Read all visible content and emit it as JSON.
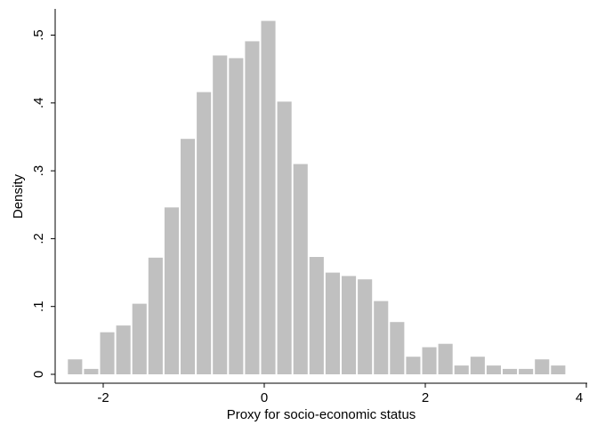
{
  "chart_data": {
    "type": "bar",
    "subtype": "histogram",
    "xlabel": "Proxy for socio-economic status",
    "ylabel": "Density",
    "xlim": [
      -2.5,
      4.0
    ],
    "ylim": [
      0,
      0.55
    ],
    "x_ticks": [
      {
        "value": -2,
        "label": "-2"
      },
      {
        "value": 0,
        "label": "0"
      },
      {
        "value": 2,
        "label": "2"
      },
      {
        "value": 4,
        "label": "4"
      }
    ],
    "y_ticks": [
      {
        "value": 0,
        "label": "0"
      },
      {
        "value": 0.1,
        "label": ".1"
      },
      {
        "value": 0.2,
        "label": ".2"
      },
      {
        "value": 0.3,
        "label": ".3"
      },
      {
        "value": 0.4,
        "label": ".4"
      },
      {
        "value": 0.5,
        "label": ".5"
      }
    ],
    "grid": false,
    "bar_color": "#c0c0c0",
    "bins": [
      {
        "x0": -2.45,
        "x1": -2.25,
        "density": 0.022
      },
      {
        "x0": -2.25,
        "x1": -2.05,
        "density": 0.008
      },
      {
        "x0": -2.05,
        "x1": -1.85,
        "density": 0.062
      },
      {
        "x0": -1.85,
        "x1": -1.65,
        "density": 0.072
      },
      {
        "x0": -1.65,
        "x1": -1.45,
        "density": 0.104
      },
      {
        "x0": -1.45,
        "x1": -1.25,
        "density": 0.172
      },
      {
        "x0": -1.25,
        "x1": -1.05,
        "density": 0.246
      },
      {
        "x0": -1.05,
        "x1": -0.85,
        "density": 0.347
      },
      {
        "x0": -0.85,
        "x1": -0.65,
        "density": 0.416
      },
      {
        "x0": -0.65,
        "x1": -0.45,
        "density": 0.47
      },
      {
        "x0": -0.45,
        "x1": -0.25,
        "density": 0.466
      },
      {
        "x0": -0.25,
        "x1": -0.05,
        "density": 0.491
      },
      {
        "x0": -0.05,
        "x1": 0.15,
        "density": 0.521
      },
      {
        "x0": 0.15,
        "x1": 0.35,
        "density": 0.402
      },
      {
        "x0": 0.35,
        "x1": 0.55,
        "density": 0.31
      },
      {
        "x0": 0.55,
        "x1": 0.75,
        "density": 0.173
      },
      {
        "x0": 0.75,
        "x1": 0.95,
        "density": 0.15
      },
      {
        "x0": 0.95,
        "x1": 1.15,
        "density": 0.145
      },
      {
        "x0": 1.15,
        "x1": 1.35,
        "density": 0.14
      },
      {
        "x0": 1.35,
        "x1": 1.55,
        "density": 0.108
      },
      {
        "x0": 1.55,
        "x1": 1.75,
        "density": 0.077
      },
      {
        "x0": 1.75,
        "x1": 1.95,
        "density": 0.026
      },
      {
        "x0": 1.95,
        "x1": 2.15,
        "density": 0.04
      },
      {
        "x0": 2.15,
        "x1": 2.35,
        "density": 0.045
      },
      {
        "x0": 2.35,
        "x1": 2.55,
        "density": 0.013
      },
      {
        "x0": 2.55,
        "x1": 2.75,
        "density": 0.026
      },
      {
        "x0": 2.75,
        "x1": 2.95,
        "density": 0.013
      },
      {
        "x0": 2.95,
        "x1": 3.15,
        "density": 0.008
      },
      {
        "x0": 3.15,
        "x1": 3.35,
        "density": 0.008
      },
      {
        "x0": 3.35,
        "x1": 3.55,
        "density": 0.022
      },
      {
        "x0": 3.55,
        "x1": 3.75,
        "density": 0.013
      }
    ]
  }
}
